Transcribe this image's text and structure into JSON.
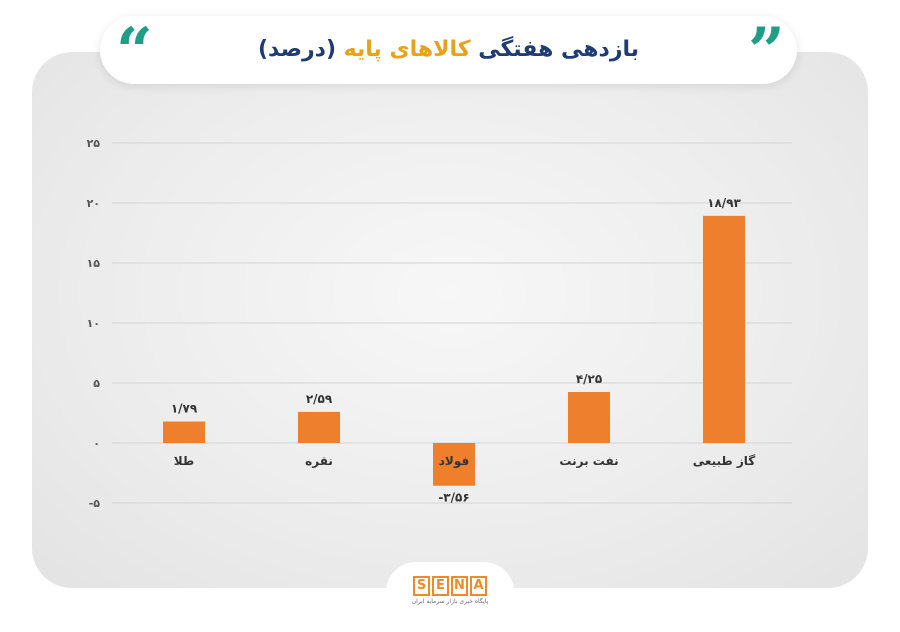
{
  "header": {
    "title_part1": "بازدهی هفتگی",
    "title_part2": "کالاهای پایه",
    "title_part3": "(درصد)",
    "quote_left": "“",
    "quote_right": "”"
  },
  "logo": {
    "letters": [
      "S",
      "E",
      "N",
      "A"
    ],
    "subtitle": "پایگاه خبری بازار سرمایه ایران"
  },
  "colors": {
    "bar": "#ee7f2d",
    "title_dark": "#1f3b73",
    "title_accent": "#e8a21a",
    "quote": "#1f9e87"
  },
  "chart_data": {
    "type": "bar",
    "categories": [
      "طلا",
      "نقره",
      "فولاد",
      "نفت برنت",
      "گاز طبیعی"
    ],
    "values": [
      1.79,
      2.59,
      -3.56,
      4.25,
      18.93
    ],
    "value_labels": [
      "۱/۷۹",
      "۲/۵۹",
      "-۳/۵۶",
      "۴/۲۵",
      "۱۸/۹۳"
    ],
    "y_ticks": [
      25,
      20,
      15,
      10,
      5,
      0,
      -5
    ],
    "y_tick_labels": [
      "۲۵",
      "۲۰",
      "۱۵",
      "۱۰",
      "۵",
      "۰",
      "-۵"
    ],
    "ylim": [
      -5,
      25
    ],
    "grid": true
  }
}
